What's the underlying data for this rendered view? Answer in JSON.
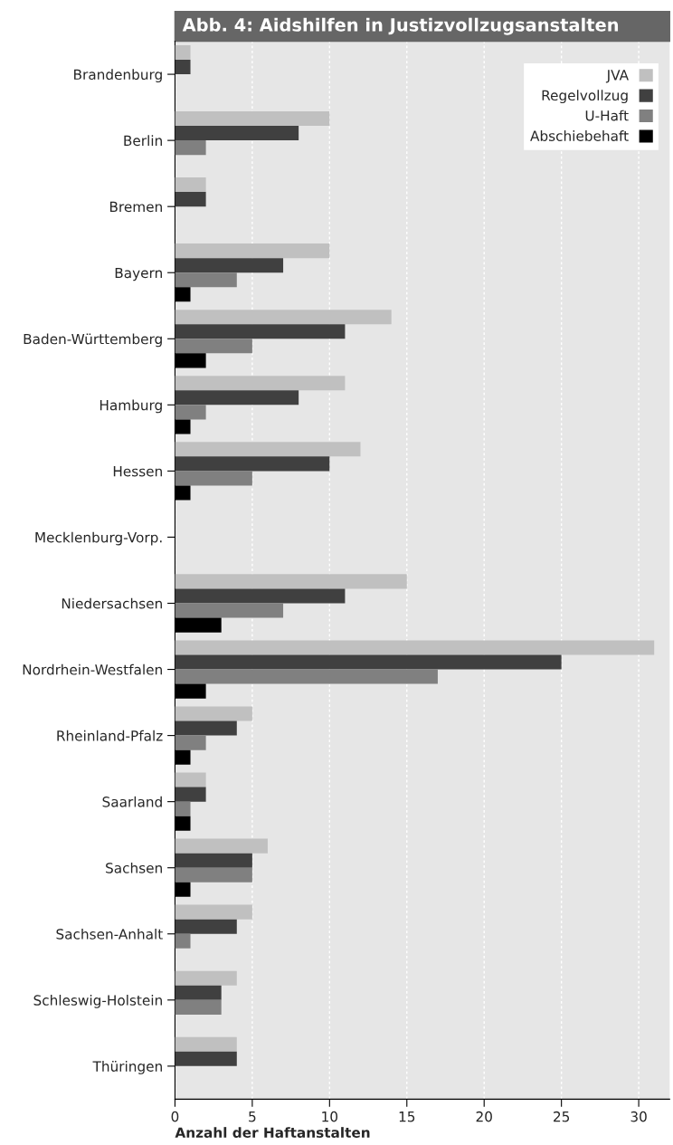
{
  "chart_data": {
    "type": "bar",
    "orientation": "horizontal",
    "title": "Abb. 4: Aidshilfen in Justizvollzugsanstalten",
    "xlabel": "Anzahl der Haftanstalten",
    "categories": [
      "Brandenburg",
      "Berlin",
      "Bremen",
      "Bayern",
      "Baden-Württemberg",
      "Hamburg",
      "Hessen",
      "Mecklenburg-Vorp.",
      "Niedersachsen",
      "Nordrhein-Westfalen",
      "Rheinland-Pfalz",
      "Saarland",
      "Sachsen",
      "Sachsen-Anhalt",
      "Schleswig-Holstein",
      "Thüringen"
    ],
    "series": [
      {
        "name": "JVA",
        "color": "#c0c0c0",
        "values": [
          1,
          10,
          2,
          10,
          14,
          11,
          12,
          0,
          15,
          31,
          5,
          2,
          6,
          5,
          4,
          4
        ]
      },
      {
        "name": "Regelvollzug",
        "color": "#404040",
        "values": [
          1,
          8,
          2,
          7,
          11,
          8,
          10,
          0,
          11,
          25,
          4,
          2,
          5,
          4,
          3,
          4
        ]
      },
      {
        "name": "U-Haft",
        "color": "#808080",
        "values": [
          0,
          2,
          0,
          4,
          5,
          2,
          5,
          0,
          7,
          17,
          2,
          1,
          5,
          1,
          3,
          0
        ]
      },
      {
        "name": "Abschiebehaft",
        "color": "#000000",
        "values": [
          0,
          0,
          0,
          1,
          2,
          1,
          1,
          0,
          3,
          2,
          1,
          1,
          1,
          0,
          0,
          0
        ]
      }
    ],
    "xlim": [
      0,
      32
    ],
    "xticks": [
      0,
      5,
      10,
      15,
      20,
      25,
      30
    ],
    "grid": "x",
    "legend": "top right"
  }
}
